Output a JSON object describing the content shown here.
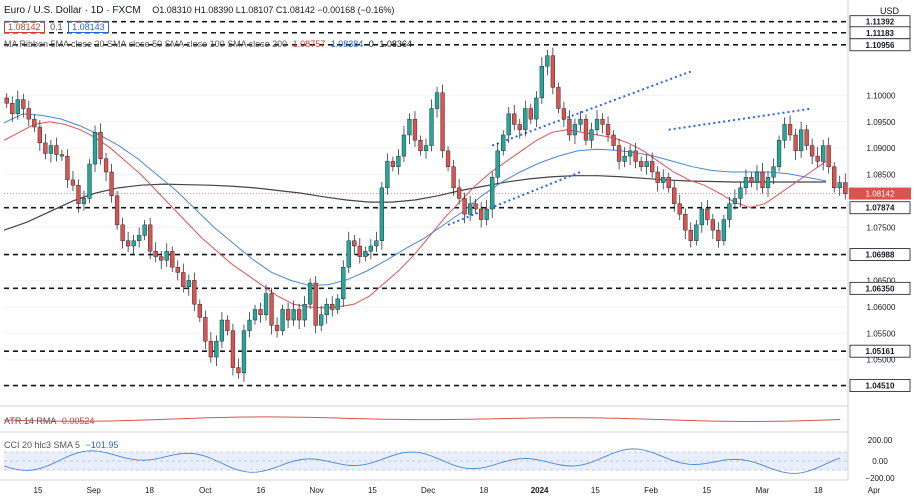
{
  "header": {
    "symbol": "Euro / U.S. Dollar · 1D · FXCM",
    "ohlc": "O1.08310 H1.08390 L1.08107 C1.08142 −0.00168 (−0.16%)",
    "bid": "1.08142",
    "spread": "0.1",
    "ask": "1.08143",
    "ma_ribbon_label": "MA Ribbon 5MA close 20 SMA close 50 SMA close 100 SMA close 200",
    "ma_value_red": "1.08757",
    "ma_value_blue": "1.08384",
    "ma_value_dark": "1.08364",
    "ma_value_zero": "0"
  },
  "axis": {
    "currency": "USD",
    "time_labels": [
      "15",
      "Sep",
      "18",
      "Oct",
      "16",
      "Nov",
      "15",
      "Dec",
      "18",
      "2024",
      "15",
      "Feb",
      "15",
      "Mar",
      "18",
      "Apr"
    ]
  },
  "atr_panel": {
    "label": "ATR 14 RMA",
    "value": "0.00524"
  },
  "cci_panel": {
    "label": "CCI 20 hlc3 SMA 5",
    "value": "−101.95",
    "ticks": [
      "200.00",
      "0.00",
      "−200.00"
    ]
  },
  "colors": {
    "up": "#26a69a",
    "down": "#d9534f",
    "sma20": "#e05252",
    "sma50": "#4a86d8",
    "sma200": "#444444",
    "trendline": "#2962ff",
    "cci": "#4a86d8",
    "atr": "#d9534f"
  },
  "chart_data": {
    "type": "candlestick",
    "y_axis": {
      "price_labels": [
        "1.10000",
        "1.09500",
        "1.09000",
        "1.08500",
        "1.07500",
        "1.07000",
        "1.06500",
        "1.06000",
        "1.05500",
        "1.05000"
      ],
      "ylim": [
        1.042,
        1.115
      ]
    },
    "levels": [
      {
        "value": 1.11392,
        "label": "1.11392"
      },
      {
        "value": 1.11183,
        "label": "1.11183"
      },
      {
        "value": 1.10956,
        "label": "1.10956"
      },
      {
        "value": 1.07874,
        "label": "1.07874"
      },
      {
        "value": 1.06988,
        "label": "1.06988"
      },
      {
        "value": 1.0635,
        "label": "1.06350"
      },
      {
        "value": 1.05161,
        "label": "1.05161"
      },
      {
        "value": 1.0451,
        "label": "1.04510"
      }
    ],
    "current_price": {
      "value": 1.08142,
      "label": "1.08142"
    },
    "closes": [
      1.0985,
      1.0965,
      1.0992,
      1.0975,
      1.0955,
      1.094,
      1.091,
      1.089,
      1.0905,
      1.0888,
      1.0885,
      1.084,
      1.083,
      1.0795,
      1.0805,
      1.087,
      1.093,
      1.088,
      1.0855,
      1.081,
      1.0755,
      1.0725,
      1.0715,
      1.0725,
      1.0735,
      1.0755,
      1.0705,
      1.0695,
      1.0688,
      1.0705,
      1.0675,
      1.0665,
      1.0638,
      1.065,
      1.0605,
      1.058,
      1.0535,
      1.0505,
      1.0535,
      1.0575,
      1.0555,
      1.0485,
      1.0475,
      1.0555,
      1.0575,
      1.0595,
      1.0585,
      1.0625,
      1.0565,
      1.0555,
      1.0595,
      1.0575,
      1.0595,
      1.0575,
      1.0605,
      1.0645,
      1.0565,
      1.0585,
      1.0605,
      1.0595,
      1.0615,
      1.0675,
      1.0725,
      1.0715,
      1.0695,
      1.0705,
      1.0715,
      1.0725,
      1.0825,
      1.0875,
      1.0865,
      1.0885,
      1.0925,
      1.0955,
      1.0915,
      1.0895,
      1.0905,
      1.0975,
      1.1005,
      1.0895,
      1.0865,
      1.0825,
      1.0805,
      1.0775,
      1.0795,
      1.0785,
      1.0765,
      1.0785,
      1.0845,
      1.0895,
      1.0925,
      1.0965,
      1.0945,
      1.0935,
      1.0975,
      1.0955,
      1.0995,
      1.1055,
      1.1075,
      1.1015,
      1.0975,
      1.0955,
      1.0925,
      1.0945,
      1.0955,
      1.0915,
      1.0935,
      1.0955,
      1.0945,
      1.0925,
      1.0905,
      1.0875,
      1.0885,
      1.0895,
      1.0875,
      1.0865,
      1.0875,
      1.0855,
      1.0835,
      1.0845,
      1.0825,
      1.0795,
      1.0775,
      1.0745,
      1.0725,
      1.0755,
      1.0785,
      1.0765,
      1.0745,
      1.0725,
      1.0765,
      1.0795,
      1.0805,
      1.0825,
      1.0845,
      1.0835,
      1.0855,
      1.0825,
      1.0845,
      1.0865,
      1.0915,
      1.0945,
      1.0925,
      1.0895,
      1.0935,
      1.0905,
      1.0885,
      1.0875,
      1.0905,
      1.0865,
      1.0825,
      1.0835,
      1.0814
    ],
    "sma20": [
      1.0915,
      1.093,
      1.0945,
      1.095,
      1.0945,
      1.0935,
      1.092,
      1.09,
      1.0875,
      1.085,
      1.082,
      1.079,
      1.076,
      1.073,
      1.0705,
      1.068,
      1.066,
      1.064,
      1.062,
      1.0605,
      1.06,
      1.0598,
      1.06,
      1.0605,
      1.062,
      1.0645,
      1.067,
      1.07,
      1.0735,
      1.077,
      1.08,
      1.083,
      1.0855,
      1.0875,
      1.0895,
      1.0915,
      1.093,
      1.0935,
      1.093,
      1.0925,
      1.092,
      1.091,
      1.0895,
      1.0875,
      1.0855,
      1.084,
      1.083,
      1.0815,
      1.0798,
      1.0788,
      1.0795,
      1.0815,
      1.0835,
      1.0855,
      1.0875
    ],
    "sma50": [
      1.0948,
      1.0965,
      1.0962,
      1.0955,
      1.0942,
      1.0925,
      1.0905,
      1.088,
      1.085,
      1.082,
      1.0785,
      1.075,
      1.072,
      1.069,
      1.0665,
      1.065,
      1.064,
      1.0642,
      1.0652,
      1.0668,
      1.0688,
      1.071,
      1.073,
      1.0755,
      1.078,
      1.081,
      1.0835,
      1.0855,
      1.0872,
      1.0885,
      1.0895,
      1.0898,
      1.0896,
      1.0892,
      1.0885,
      1.0875,
      1.0865,
      1.0858,
      1.0855,
      1.0855,
      1.0855,
      1.0852,
      1.0845,
      1.0838
    ],
    "sma200": [
      1.0745,
      1.076,
      1.078,
      1.08,
      1.0815,
      1.0825,
      1.083,
      1.0832,
      1.0831,
      1.083,
      1.0828,
      1.0825,
      1.082,
      1.0815,
      1.0808,
      1.0802,
      1.0798,
      1.0798,
      1.0802,
      1.081,
      1.082,
      1.0828,
      1.0836,
      1.0842,
      1.0846,
      1.0848,
      1.0848,
      1.0846,
      1.0843,
      1.084,
      1.0838,
      1.0837,
      1.0836,
      1.0836,
      1.0836,
      1.0836,
      1.0836
    ],
    "channel": {
      "lower": [
        [
          80,
          1.0755
        ],
        [
          104,
          1.0855
        ]
      ],
      "upper": [
        [
          88,
          1.0905
        ],
        [
          124,
          1.1045
        ]
      ],
      "upper2": [
        [
          120,
          1.0935
        ],
        [
          146,
          1.0975
        ]
      ]
    }
  }
}
